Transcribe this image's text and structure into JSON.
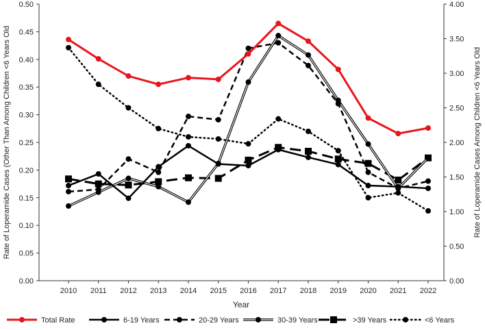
{
  "chart_data": {
    "type": "line",
    "xlabel": "Year",
    "ylabel": "Rate of Loperamide Cases (Other Than Among Children <6 Years Old",
    "y2label": "Rate of Loperamide Cases Among Children <6 Years Old",
    "ylim": [
      0,
      0.5
    ],
    "y2lim": [
      0,
      4
    ],
    "yticks": [
      "0.00",
      "0.05",
      "0.10",
      "0.15",
      "0.20",
      "0.25",
      "0.30",
      "0.35",
      "0.40",
      "0.45",
      "0.50"
    ],
    "y2ticks": [
      "0.00",
      "0.50",
      "1.00",
      "1.50",
      "2.00",
      "2.50",
      "3.00",
      "3.50",
      "4.00"
    ],
    "categories": [
      "2010",
      "2011",
      "2012",
      "2013",
      "2014",
      "2015",
      "2016",
      "2017",
      "2018",
      "2019",
      "2020",
      "2021",
      "2022"
    ],
    "legend_position": "bottom",
    "grid": false,
    "series": [
      {
        "name": "Total Rate",
        "axis": "left",
        "style": "red",
        "color": "#e8141b",
        "values": [
          0.436,
          0.401,
          0.37,
          0.355,
          0.367,
          0.364,
          0.41,
          0.465,
          0.433,
          0.382,
          0.294,
          0.266,
          0.276
        ]
      },
      {
        "name": "6-19 Years",
        "axis": "left",
        "style": "solid",
        "values": [
          0.172,
          0.193,
          0.149,
          0.206,
          0.244,
          0.211,
          0.208,
          0.237,
          0.223,
          0.21,
          0.172,
          0.17,
          0.167
        ]
      },
      {
        "name": "20-29 Years",
        "axis": "left",
        "style": "dash",
        "values": [
          0.161,
          0.165,
          0.22,
          0.196,
          0.297,
          0.291,
          0.42,
          0.43,
          0.389,
          0.32,
          0.196,
          0.167,
          0.18
        ]
      },
      {
        "name": "30-39 Years",
        "axis": "left",
        "style": "double",
        "values": [
          0.135,
          0.16,
          0.185,
          0.17,
          0.142,
          0.212,
          0.359,
          0.443,
          0.408,
          0.326,
          0.247,
          0.167,
          0.222
        ]
      },
      {
        "name": ">39 Years",
        "axis": "left",
        "style": "longdash",
        "values": [
          0.184,
          0.175,
          0.173,
          0.179,
          0.186,
          0.185,
          0.218,
          0.241,
          0.234,
          0.22,
          0.212,
          0.182,
          0.222
        ]
      },
      {
        "name": "<6 Years",
        "axis": "right",
        "style": "dot",
        "values": [
          3.37,
          2.84,
          2.5,
          2.2,
          2.08,
          2.05,
          1.98,
          2.34,
          2.16,
          1.88,
          1.2,
          1.27,
          1.01
        ]
      }
    ]
  }
}
